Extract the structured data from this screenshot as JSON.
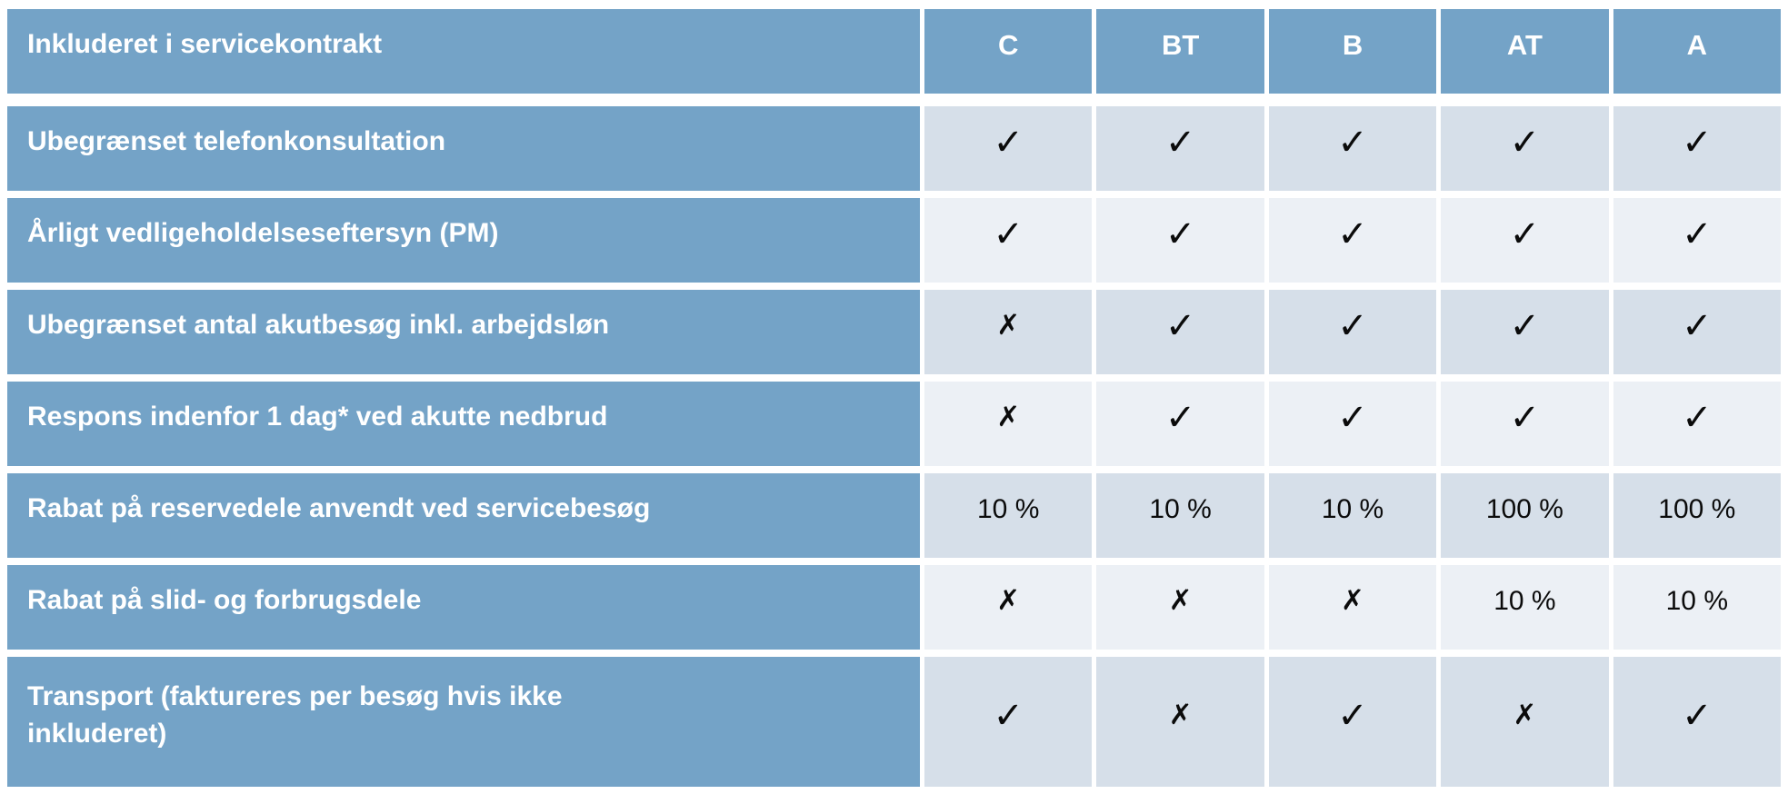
{
  "table": {
    "header": {
      "label": "Inkluderet i servicekontrakt",
      "columns": [
        "C",
        "BT",
        "B",
        "AT",
        "A"
      ]
    },
    "rows": [
      {
        "label": "Ubegrænset telefonkonsultation",
        "values": [
          "check",
          "check",
          "check",
          "check",
          "check"
        ]
      },
      {
        "label": "Årligt vedligeholdelseseftersyn (PM)",
        "values": [
          "check",
          "check",
          "check",
          "check",
          "check"
        ]
      },
      {
        "label": "Ubegrænset antal akutbesøg inkl. arbejdsløn",
        "values": [
          "cross",
          "check",
          "check",
          "check",
          "check"
        ]
      },
      {
        "label": "Respons indenfor 1 dag* ved akutte nedbrud",
        "values": [
          "cross",
          "check",
          "check",
          "check",
          "check"
        ]
      },
      {
        "label": "Rabat på reservedele anvendt ved servicebesøg",
        "values": [
          "10 %",
          "10 %",
          "10 %",
          "100 %",
          "100 %"
        ]
      },
      {
        "label": "Rabat på slid- og forbrugsdele",
        "values": [
          "cross",
          "cross",
          "cross",
          "10 %",
          "10 %"
        ]
      },
      {
        "label": "Transport (faktureres per besøg hvis ikke\ninkluderet)",
        "values": [
          "check",
          "cross",
          "check",
          "cross",
          "check"
        ]
      }
    ],
    "icons": {
      "check": "✓",
      "cross": "✗"
    },
    "colors": {
      "header_bg": "#74A3C7",
      "band_dark": "#D6DFE9",
      "band_light": "#ECF0F5",
      "header_text": "#FFFFFF",
      "value_text": "#0B0B0B"
    }
  }
}
